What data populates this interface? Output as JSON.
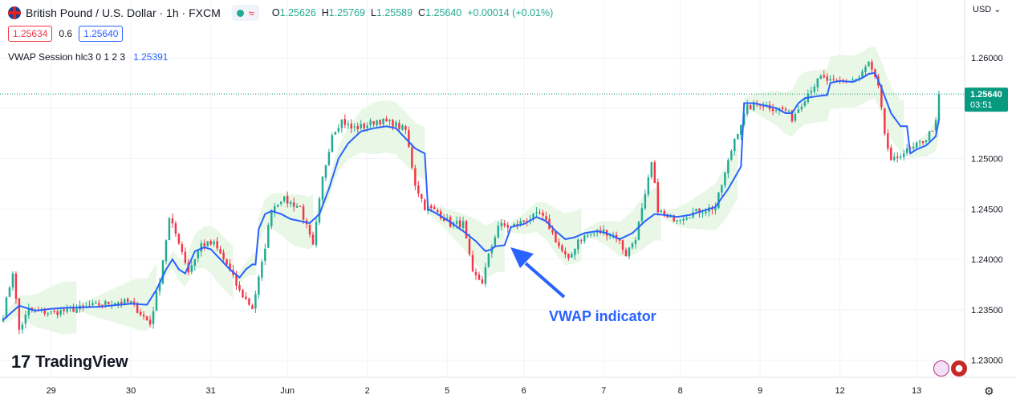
{
  "header": {
    "symbol_title": "British Pound / U.S. Dollar · 1h · FXCM",
    "status_wave": "≈",
    "ohlc": {
      "o_label": "O",
      "o": "1.25626",
      "h_label": "H",
      "h": "1.25769",
      "l_label": "L",
      "l": "1.25589",
      "c_label": "C",
      "c": "1.25640",
      "change": "+0.00014 (+0.01%)"
    },
    "bid": "1.25634",
    "spread": "0.6",
    "ask": "1.25640",
    "indicator_label": "VWAP Session hlc3 0 1 2 3",
    "indicator_value": "1.25391"
  },
  "currency": "USD",
  "brand": "TradingView",
  "brand_mark": "17",
  "annotation": "VWAP indicator",
  "price_tag": {
    "price": "1.25640",
    "countdown": "03:51"
  },
  "colors": {
    "up": "#22ab94",
    "down": "#f23645",
    "vwap": "#2962ff",
    "band": "#e9f7e6",
    "price_tag": "#089981"
  },
  "chart_data": {
    "type": "candlestick",
    "title": "British Pound / U.S. Dollar · 1h · FXCM",
    "y_ticks": [
      1.23,
      1.235,
      1.24,
      1.245,
      1.25,
      1.255,
      1.26
    ],
    "y_tick_labels": [
      "1.23000",
      "1.23500",
      "1.24000",
      "1.24500",
      "1.25000",
      "1.25500",
      "1.26000"
    ],
    "ylim": [
      1.2283,
      1.2635
    ],
    "x_ticks": [
      {
        "label": "29",
        "index": 15
      },
      {
        "label": "30",
        "index": 40
      },
      {
        "label": "31",
        "index": 65
      },
      {
        "label": "Jun",
        "index": 89
      },
      {
        "label": "2",
        "index": 114
      },
      {
        "label": "5",
        "index": 139
      },
      {
        "label": "6",
        "index": 163
      },
      {
        "label": "7",
        "index": 188
      },
      {
        "label": "8",
        "index": 212
      },
      {
        "label": "9",
        "index": 237
      },
      {
        "label": "12",
        "index": 262
      },
      {
        "label": "13",
        "index": 286
      }
    ],
    "current_price": 1.2564,
    "candle_count": 294,
    "price_path": [
      [
        0,
        1.2345
      ],
      [
        3,
        1.2388
      ],
      [
        5,
        1.233
      ],
      [
        8,
        1.235
      ],
      [
        15,
        1.2347
      ],
      [
        25,
        1.2352
      ],
      [
        35,
        1.2358
      ],
      [
        40,
        1.2357
      ],
      [
        46,
        1.2336
      ],
      [
        49,
        1.238
      ],
      [
        52,
        1.244
      ],
      [
        55,
        1.2418
      ],
      [
        58,
        1.2388
      ],
      [
        62,
        1.2415
      ],
      [
        66,
        1.2415
      ],
      [
        70,
        1.2395
      ],
      [
        74,
        1.2368
      ],
      [
        78,
        1.2352
      ],
      [
        81,
        1.2395
      ],
      [
        84,
        1.245
      ],
      [
        87,
        1.246
      ],
      [
        93,
        1.2452
      ],
      [
        97,
        1.2412
      ],
      [
        100,
        1.248
      ],
      [
        103,
        1.2525
      ],
      [
        106,
        1.2538
      ],
      [
        109,
        1.253
      ],
      [
        113,
        1.2532
      ],
      [
        117,
        1.2538
      ],
      [
        122,
        1.2535
      ],
      [
        126,
        1.2528
      ],
      [
        129,
        1.2475
      ],
      [
        132,
        1.2452
      ],
      [
        136,
        1.2447
      ],
      [
        140,
        1.2435
      ],
      [
        144,
        1.2435
      ],
      [
        147,
        1.2385
      ],
      [
        150,
        1.2378
      ],
      [
        152,
        1.2403
      ],
      [
        155,
        1.2434
      ],
      [
        159,
        1.2432
      ],
      [
        163,
        1.2438
      ],
      [
        168,
        1.2445
      ],
      [
        171,
        1.2432
      ],
      [
        174,
        1.2413
      ],
      [
        177,
        1.2398
      ],
      [
        180,
        1.242
      ],
      [
        184,
        1.2425
      ],
      [
        188,
        1.2428
      ],
      [
        192,
        1.2423
      ],
      [
        195,
        1.2405
      ],
      [
        198,
        1.2422
      ],
      [
        201,
        1.2462
      ],
      [
        203,
        1.2495
      ],
      [
        205,
        1.245
      ],
      [
        208,
        1.244
      ],
      [
        212,
        1.2442
      ],
      [
        218,
        1.2448
      ],
      [
        223,
        1.2452
      ],
      [
        226,
        1.2485
      ],
      [
        229,
        1.252
      ],
      [
        233,
        1.255
      ],
      [
        237,
        1.2555
      ],
      [
        241,
        1.255
      ],
      [
        245,
        1.2548
      ],
      [
        247,
        1.254
      ],
      [
        250,
        1.2555
      ],
      [
        253,
        1.257
      ],
      [
        256,
        1.258
      ],
      [
        260,
        1.2575
      ],
      [
        264,
        1.2577
      ],
      [
        268,
        1.258
      ],
      [
        271,
        1.2595
      ],
      [
        274,
        1.257
      ],
      [
        276,
        1.2525
      ],
      [
        278,
        1.2495
      ],
      [
        281,
        1.2505
      ],
      [
        285,
        1.251
      ],
      [
        289,
        1.252
      ],
      [
        292,
        1.2535
      ],
      [
        293,
        1.2564
      ]
    ],
    "vwap": [
      [
        0,
        1.234
      ],
      [
        5,
        1.2354
      ],
      [
        10,
        1.2349
      ],
      [
        15,
        1.2351
      ],
      [
        20,
        1.2352
      ],
      [
        30,
        1.2353
      ],
      [
        40,
        1.2356
      ],
      [
        45,
        1.2355
      ],
      [
        48,
        1.237
      ],
      [
        51,
        1.239
      ],
      [
        53,
        1.24
      ],
      [
        55,
        1.239
      ],
      [
        57,
        1.2386
      ],
      [
        60,
        1.2408
      ],
      [
        63,
        1.2412
      ],
      [
        65,
        1.241
      ],
      [
        68,
        1.24
      ],
      [
        71,
        1.239
      ],
      [
        74,
        1.2382
      ],
      [
        76,
        1.239
      ],
      [
        78,
        1.2395
      ],
      [
        79,
        1.2395
      ],
      [
        80,
        1.243
      ],
      [
        82,
        1.2445
      ],
      [
        84,
        1.2448
      ],
      [
        87,
        1.2445
      ],
      [
        90,
        1.244
      ],
      [
        93,
        1.2438
      ],
      [
        96,
        1.2436
      ],
      [
        99,
        1.2445
      ],
      [
        102,
        1.247
      ],
      [
        105,
        1.25
      ],
      [
        108,
        1.2515
      ],
      [
        112,
        1.2527
      ],
      [
        116,
        1.253
      ],
      [
        120,
        1.2532
      ],
      [
        123,
        1.253
      ],
      [
        126,
        1.252
      ],
      [
        129,
        1.251
      ],
      [
        132,
        1.2505
      ],
      [
        133,
        1.245
      ],
      [
        136,
        1.2445
      ],
      [
        140,
        1.2437
      ],
      [
        144,
        1.2428
      ],
      [
        148,
        1.2418
      ],
      [
        151,
        1.2408
      ],
      [
        153,
        1.241
      ],
      [
        154,
        1.2413
      ],
      [
        157,
        1.2414
      ],
      [
        159,
        1.2432
      ],
      [
        163,
        1.2435
      ],
      [
        167,
        1.2442
      ],
      [
        170,
        1.2438
      ],
      [
        173,
        1.2428
      ],
      [
        176,
        1.242
      ],
      [
        179,
        1.2422
      ],
      [
        182,
        1.2426
      ],
      [
        186,
        1.2428
      ],
      [
        189,
        1.2426
      ],
      [
        193,
        1.242
      ],
      [
        197,
        1.2426
      ],
      [
        201,
        1.2438
      ],
      [
        204,
        1.2445
      ],
      [
        207,
        1.2444
      ],
      [
        211,
        1.2442
      ],
      [
        215,
        1.2444
      ],
      [
        219,
        1.2448
      ],
      [
        223,
        1.2452
      ],
      [
        227,
        1.247
      ],
      [
        231,
        1.2492
      ],
      [
        232,
        1.2555
      ],
      [
        235,
        1.2555
      ],
      [
        238,
        1.2553
      ],
      [
        242,
        1.255
      ],
      [
        245,
        1.2545
      ],
      [
        247,
        1.2545
      ],
      [
        249,
        1.2555
      ],
      [
        251,
        1.256
      ],
      [
        255,
        1.2562
      ],
      [
        258,
        1.2563
      ],
      [
        259,
        1.2575
      ],
      [
        262,
        1.2577
      ],
      [
        266,
        1.2576
      ],
      [
        269,
        1.258
      ],
      [
        271,
        1.2584
      ],
      [
        273,
        1.2585
      ],
      [
        275,
        1.257
      ],
      [
        278,
        1.2545
      ],
      [
        281,
        1.2532
      ],
      [
        283,
        1.2532
      ],
      [
        284,
        1.2505
      ],
      [
        286,
        1.2509
      ],
      [
        289,
        1.2513
      ],
      [
        292,
        1.2522
      ],
      [
        293,
        1.2539
      ]
    ],
    "bands": [
      {
        "start": 0,
        "end": 24
      },
      {
        "start": 24,
        "end": 49
      },
      {
        "start": 49,
        "end": 73
      },
      {
        "start": 73,
        "end": 98
      },
      {
        "start": 98,
        "end": 133
      },
      {
        "start": 133,
        "end": 158
      },
      {
        "start": 158,
        "end": 182
      },
      {
        "start": 182,
        "end": 207
      },
      {
        "start": 207,
        "end": 231
      },
      {
        "start": 231,
        "end": 283
      },
      {
        "start": 283,
        "end": 294
      }
    ]
  }
}
